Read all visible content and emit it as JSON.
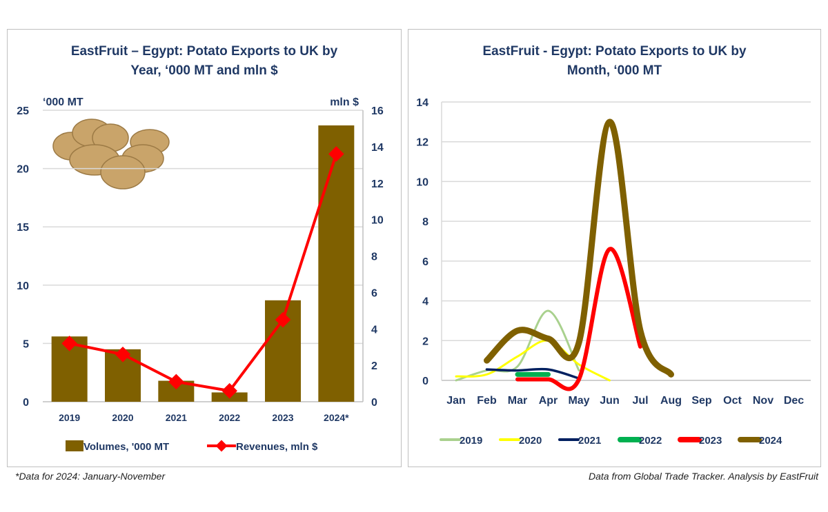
{
  "footnote_left": "*Data for 2024: January-November",
  "footnote_right": "Data from Global Trade Tracker. Analysis by  EastFruit",
  "chart_data": [
    {
      "type": "bar+line",
      "title": "EastFruit – Egypt: Potato Exports to UK by Year, ‘000 MT and mln $",
      "title_lines": [
        "EastFruit – Egypt: Potato Exports to UK by",
        "Year, ‘000 MT and mln $"
      ],
      "ylabel_left": "‘000 MT",
      "ylabel_right": "mln $",
      "ylim_left": [
        0,
        25
      ],
      "ylim_right": [
        0,
        16
      ],
      "yticks_left": [
        0,
        5,
        10,
        15,
        20,
        25
      ],
      "yticks_right": [
        0,
        2,
        4,
        6,
        8,
        10,
        12,
        14,
        16
      ],
      "categories": [
        "2019",
        "2020",
        "2021",
        "2022",
        "2023",
        "2024*"
      ],
      "grid": true,
      "legend_placement": "bottom",
      "series": [
        {
          "name": "Volumes, '000 MT",
          "type": "bar",
          "axis": "left",
          "color": "#7f6000",
          "values": [
            5.6,
            4.5,
            1.8,
            0.8,
            8.7,
            23.7
          ]
        },
        {
          "name": "Revenues, mln $",
          "type": "line",
          "axis": "right",
          "color": "#ff0000",
          "values": [
            3.2,
            2.6,
            1.1,
            0.6,
            4.5,
            13.6
          ]
        }
      ]
    },
    {
      "type": "line",
      "title": "EastFruit - Egypt: Potato Exports to UK by Month, ‘000 MT",
      "title_lines": [
        "EastFruit - Egypt: Potato Exports to UK by",
        "Month, ‘000 MT"
      ],
      "ylim": [
        0,
        14
      ],
      "yticks": [
        0,
        2,
        4,
        6,
        8,
        10,
        12,
        14
      ],
      "categories": [
        "Jan",
        "Feb",
        "Mar",
        "Apr",
        "May",
        "Jun",
        "Jul",
        "Aug",
        "Sep",
        "Oct",
        "Nov",
        "Dec"
      ],
      "grid": true,
      "smooth": true,
      "legend_placement": "bottom",
      "series": [
        {
          "name": "2019",
          "color": "#a9d18e",
          "values": [
            0,
            0.5,
            0.7,
            3.5,
            0.5,
            null,
            null,
            null,
            null,
            null,
            null,
            null
          ]
        },
        {
          "name": "2020",
          "color": "#ffff00",
          "values": [
            0.2,
            0.3,
            1.2,
            2.0,
            0.8,
            0,
            null,
            null,
            null,
            null,
            null,
            null
          ]
        },
        {
          "name": "2021",
          "color": "#002060",
          "values": [
            null,
            0.55,
            0.5,
            0.55,
            0.1,
            null,
            null,
            null,
            null,
            null,
            null,
            null
          ]
        },
        {
          "name": "2022",
          "color": "#00b050",
          "values": [
            null,
            null,
            0.3,
            0.3,
            null,
            null,
            null,
            null,
            null,
            null,
            null,
            null
          ]
        },
        {
          "name": "2023",
          "color": "#ff0000",
          "values": [
            null,
            null,
            0.05,
            0.05,
            0.05,
            6.6,
            1.7,
            null,
            null,
            null,
            null,
            null
          ]
        },
        {
          "name": "2024",
          "color": "#7f6000",
          "values": [
            null,
            1.0,
            2.5,
            2.1,
            1.9,
            13.0,
            2.5,
            0.3,
            null,
            null,
            null,
            null
          ]
        }
      ]
    }
  ]
}
